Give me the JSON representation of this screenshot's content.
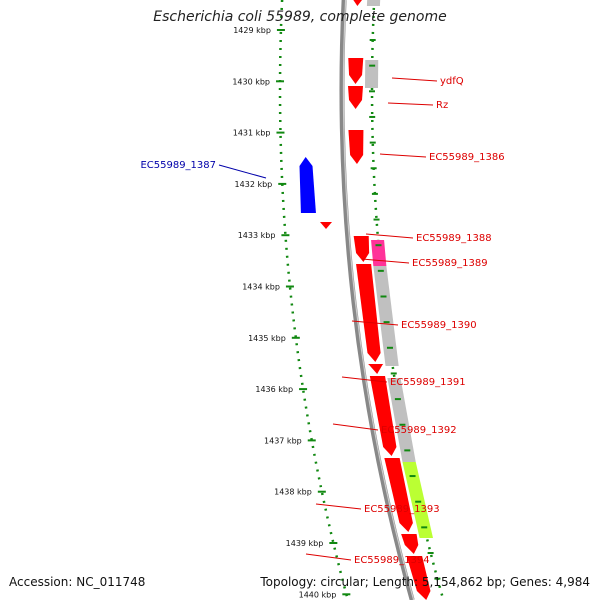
{
  "title": "Escherichia coli 55989, complete genome",
  "footer": {
    "accession": "Accession: NC_011748",
    "info": "Topology: circular; Length: 5,154,862 bp; Genes: 4,984"
  },
  "colors": {
    "forward_gene": "#ff0000",
    "reverse_gene": "#0000ff",
    "gene_label": "#dd0000",
    "reverse_label": "#0000aa",
    "backbone": "#888888",
    "dotted_ring": "#118811",
    "cog_gray": "#c0c0c0",
    "cog_pink": "#ff3399",
    "cog_green": "#bbff33"
  },
  "ticks": [
    {
      "label": "1429 kbp"
    },
    {
      "label": "1430 kbp"
    },
    {
      "label": "1431 kbp"
    },
    {
      "label": "1432 kbp"
    },
    {
      "label": "1433 kbp"
    },
    {
      "label": "1434 kbp"
    },
    {
      "label": "1435 kbp"
    },
    {
      "label": "1436 kbp"
    },
    {
      "label": "1437 kbp"
    },
    {
      "label": "1438 kbp"
    },
    {
      "label": "1439 kbp"
    },
    {
      "label": "1440 kbp"
    }
  ],
  "gene_labels": [
    {
      "text": "ydfQ",
      "strand": "forward"
    },
    {
      "text": "Rz",
      "strand": "forward"
    },
    {
      "text": "EC55989_1386",
      "strand": "forward"
    },
    {
      "text": "EC55989_1387",
      "strand": "reverse"
    },
    {
      "text": "EC55989_1388",
      "strand": "forward"
    },
    {
      "text": "EC55989_1389",
      "strand": "forward"
    },
    {
      "text": "EC55989_1390",
      "strand": "forward"
    },
    {
      "text": "EC55989_1391",
      "strand": "forward"
    },
    {
      "text": "EC55989_1392",
      "strand": "forward"
    },
    {
      "text": "EC55989_1393",
      "strand": "forward"
    },
    {
      "text": "EC55989_1394",
      "strand": "forward"
    }
  ]
}
